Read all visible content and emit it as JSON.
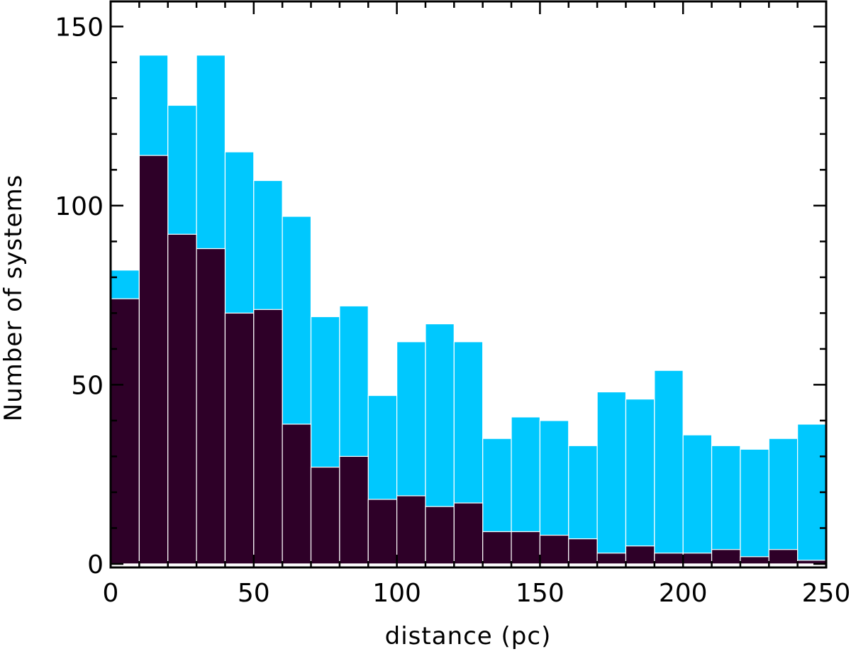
{
  "chart_data": {
    "type": "bar",
    "title": "",
    "xlabel": "distance (pc)",
    "ylabel": "Number of systems",
    "xlim": [
      0,
      250
    ],
    "ylim": [
      -1,
      157
    ],
    "bin_width": 10,
    "bin_edges": [
      0,
      10,
      20,
      30,
      40,
      50,
      60,
      70,
      80,
      90,
      100,
      110,
      120,
      130,
      140,
      150,
      160,
      170,
      180,
      190,
      200,
      210,
      220,
      230,
      240,
      250
    ],
    "x_ticks": [
      0,
      50,
      100,
      150,
      200,
      250
    ],
    "y_ticks": [
      0,
      50,
      100,
      150
    ],
    "x_tick_labels": [
      "0",
      "50",
      "100",
      "150",
      "200",
      "250"
    ],
    "y_tick_labels": [
      "0",
      "50",
      "100",
      "150"
    ],
    "x_minor_tick_step": 10,
    "y_minor_tick_step": 10,
    "grid": false,
    "legend": "none",
    "series": [
      {
        "color": "#00c8fe",
        "values": [
          82,
          142,
          128,
          142,
          115,
          107,
          97,
          69,
          72,
          47,
          62,
          67,
          62,
          35,
          41,
          40,
          33,
          48,
          46,
          54,
          36,
          33,
          32,
          35,
          39
        ]
      },
      {
        "color": "#2e0028",
        "values": [
          74,
          114,
          92,
          88,
          70,
          71,
          39,
          27,
          30,
          18,
          19,
          16,
          17,
          9,
          9,
          8,
          7,
          3,
          5,
          3,
          3,
          4,
          2,
          4,
          1
        ]
      }
    ]
  }
}
